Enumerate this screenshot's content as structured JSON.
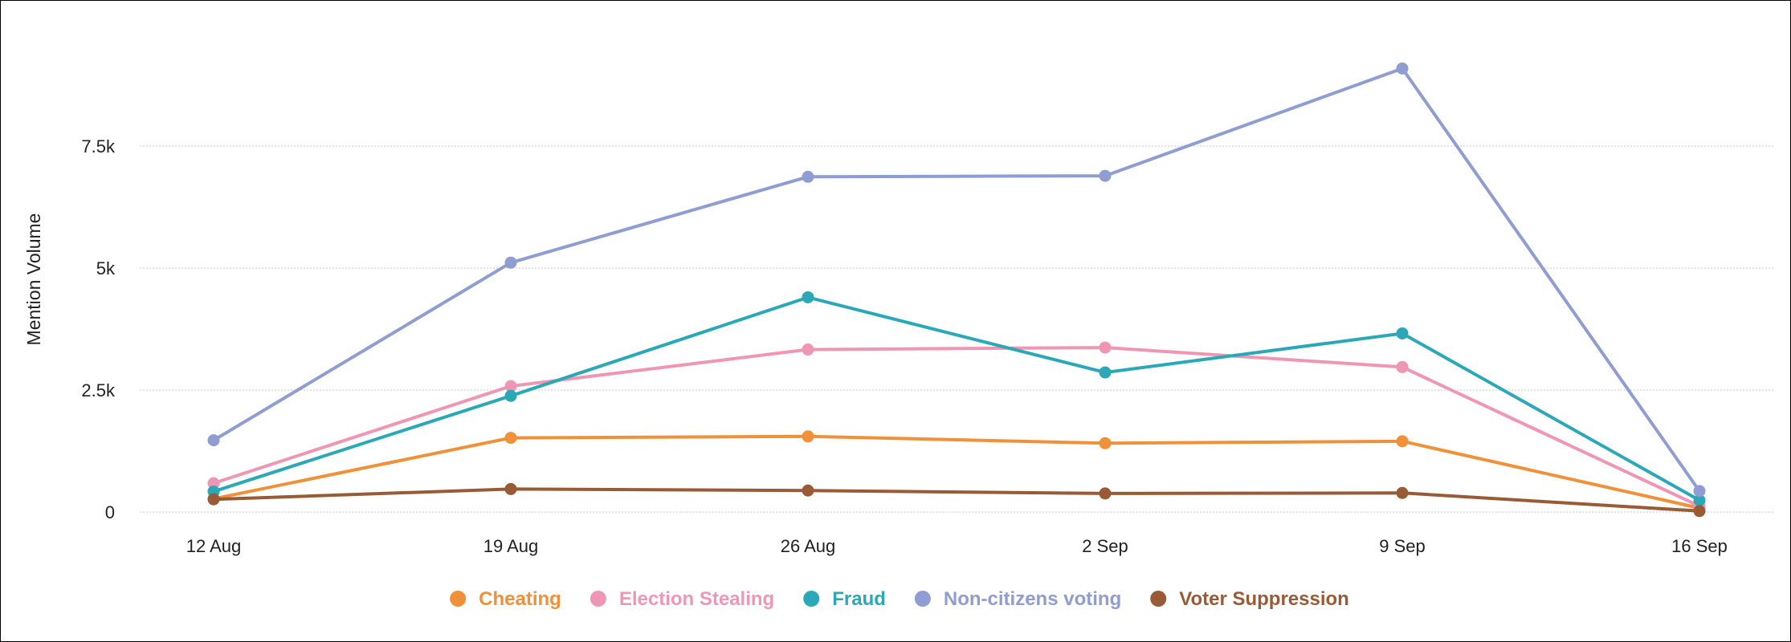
{
  "chart_data": {
    "type": "line",
    "title": "",
    "xlabel": "",
    "ylabel": "Mention Volume",
    "categories": [
      "12 Aug",
      "19 Aug",
      "26 Aug",
      "2 Sep",
      "9 Sep",
      "16 Sep"
    ],
    "ylim": [
      0,
      9500
    ],
    "yticks": [
      0,
      2500,
      5000,
      7500
    ],
    "ytick_labels": [
      "0",
      "2.5k",
      "5k",
      "7.5k"
    ],
    "grid": true,
    "legend_position": "bottom-center",
    "series": [
      {
        "name": "Cheating",
        "color": "#f0913a",
        "values": [
          270,
          1520,
          1550,
          1410,
          1450,
          80
        ]
      },
      {
        "name": "Election Stealing",
        "color": "#ef96b4",
        "values": [
          590,
          2580,
          3330,
          3370,
          2970,
          120
        ]
      },
      {
        "name": "Fraud",
        "color": "#2aa8b8",
        "values": [
          420,
          2380,
          4400,
          2860,
          3660,
          240
        ]
      },
      {
        "name": "Non-citizens voting",
        "color": "#8f9dd2",
        "values": [
          1470,
          5110,
          6870,
          6890,
          9090,
          430
        ]
      },
      {
        "name": "Voter Suppression",
        "color": "#985b35",
        "values": [
          260,
          470,
          440,
          380,
          390,
          20
        ]
      }
    ]
  }
}
